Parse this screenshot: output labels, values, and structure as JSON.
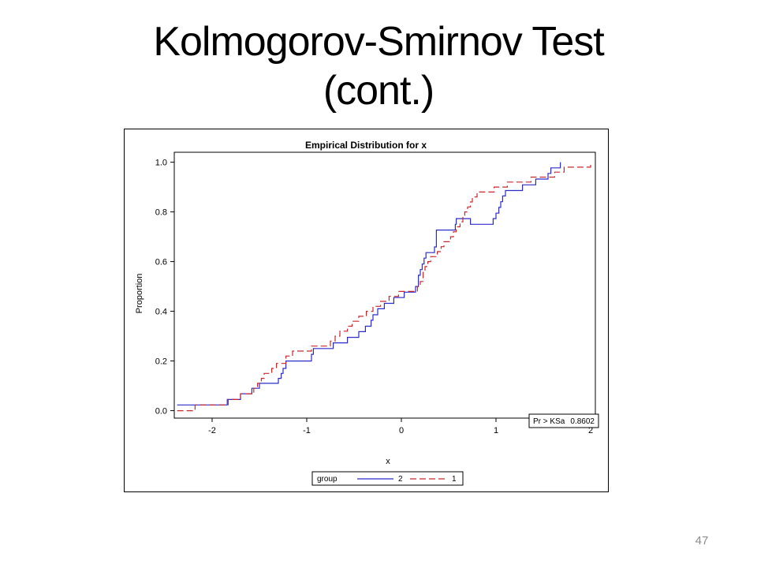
{
  "slide": {
    "title_line1": "Kolmogorov-Smirnov Test",
    "title_line2": "(cont.)",
    "page_number": "47"
  },
  "chart_data": {
    "type": "line",
    "step": true,
    "title": "Empirical Distribution for x",
    "xlabel": "x",
    "ylabel": "Proportion",
    "xlim": [
      -2.4,
      2.05
    ],
    "ylim": [
      -0.03,
      1.04
    ],
    "xticks": [
      -2,
      -1,
      0,
      1,
      2
    ],
    "yticks": [
      0.0,
      0.2,
      0.4,
      0.6,
      0.8,
      1.0
    ],
    "ytick_labels": [
      "0.0",
      "0.2",
      "0.4",
      "0.6",
      "0.8",
      "1.0"
    ],
    "grid": false,
    "legend": {
      "title": "group",
      "position": "bottom"
    },
    "annotation": {
      "label": "Pr > KSa",
      "value": "0.8602",
      "position": "bottom-right"
    },
    "series": [
      {
        "name": "2",
        "color": "#2b2bcc",
        "dash": "solid",
        "points": [
          [
            -2.37,
            0.023
          ],
          [
            -2.3,
            0.023
          ],
          [
            -1.85,
            0.023
          ],
          [
            -1.84,
            0.045
          ],
          [
            -1.72,
            0.045
          ],
          [
            -1.7,
            0.068
          ],
          [
            -1.6,
            0.068
          ],
          [
            -1.58,
            0.09
          ],
          [
            -1.52,
            0.09
          ],
          [
            -1.5,
            0.11
          ],
          [
            -1.35,
            0.11
          ],
          [
            -1.3,
            0.13
          ],
          [
            -1.27,
            0.15
          ],
          [
            -1.25,
            0.17
          ],
          [
            -1.22,
            0.2
          ],
          [
            -1.0,
            0.2
          ],
          [
            -0.95,
            0.227
          ],
          [
            -0.93,
            0.25
          ],
          [
            -0.75,
            0.25
          ],
          [
            -0.72,
            0.273
          ],
          [
            -0.6,
            0.273
          ],
          [
            -0.57,
            0.295
          ],
          [
            -0.45,
            0.318
          ],
          [
            -0.38,
            0.34
          ],
          [
            -0.32,
            0.364
          ],
          [
            -0.3,
            0.386
          ],
          [
            -0.27,
            0.386
          ],
          [
            -0.25,
            0.41
          ],
          [
            -0.2,
            0.41
          ],
          [
            -0.18,
            0.432
          ],
          [
            -0.1,
            0.432
          ],
          [
            -0.08,
            0.455
          ],
          [
            0.0,
            0.455
          ],
          [
            0.03,
            0.477
          ],
          [
            0.1,
            0.477
          ],
          [
            0.15,
            0.5
          ],
          [
            0.18,
            0.545
          ],
          [
            0.2,
            0.568
          ],
          [
            0.22,
            0.59
          ],
          [
            0.24,
            0.614
          ],
          [
            0.26,
            0.636
          ],
          [
            0.32,
            0.636
          ],
          [
            0.35,
            0.659
          ],
          [
            0.37,
            0.727
          ],
          [
            0.55,
            0.727
          ],
          [
            0.57,
            0.75
          ],
          [
            0.58,
            0.773
          ],
          [
            0.72,
            0.773
          ],
          [
            0.73,
            0.75
          ],
          [
            0.94,
            0.75
          ],
          [
            0.97,
            0.773
          ],
          [
            1.0,
            0.795
          ],
          [
            1.03,
            0.818
          ],
          [
            1.05,
            0.841
          ],
          [
            1.07,
            0.864
          ],
          [
            1.1,
            0.886
          ],
          [
            1.25,
            0.886
          ],
          [
            1.28,
            0.909
          ],
          [
            1.4,
            0.909
          ],
          [
            1.42,
            0.932
          ],
          [
            1.52,
            0.932
          ],
          [
            1.55,
            0.955
          ],
          [
            1.58,
            0.977
          ],
          [
            1.67,
            0.977
          ],
          [
            1.68,
            1.0
          ]
        ]
      },
      {
        "name": "1",
        "color": "#c8292e",
        "dash": "dashed",
        "points": [
          [
            -2.37,
            0.0
          ],
          [
            -2.2,
            0.0
          ],
          [
            -2.18,
            0.023
          ],
          [
            -1.85,
            0.023
          ],
          [
            -1.83,
            0.045
          ],
          [
            -1.72,
            0.045
          ],
          [
            -1.7,
            0.068
          ],
          [
            -1.58,
            0.068
          ],
          [
            -1.56,
            0.09
          ],
          [
            -1.52,
            0.11
          ],
          [
            -1.48,
            0.13
          ],
          [
            -1.45,
            0.15
          ],
          [
            -1.4,
            0.15
          ],
          [
            -1.37,
            0.17
          ],
          [
            -1.32,
            0.19
          ],
          [
            -1.25,
            0.19
          ],
          [
            -1.22,
            0.22
          ],
          [
            -1.15,
            0.24
          ],
          [
            -0.98,
            0.24
          ],
          [
            -0.95,
            0.26
          ],
          [
            -0.8,
            0.26
          ],
          [
            -0.75,
            0.28
          ],
          [
            -0.7,
            0.3
          ],
          [
            -0.65,
            0.32
          ],
          [
            -0.6,
            0.32
          ],
          [
            -0.57,
            0.34
          ],
          [
            -0.52,
            0.36
          ],
          [
            -0.45,
            0.38
          ],
          [
            -0.4,
            0.38
          ],
          [
            -0.37,
            0.4
          ],
          [
            -0.3,
            0.42
          ],
          [
            -0.25,
            0.42
          ],
          [
            -0.22,
            0.44
          ],
          [
            -0.15,
            0.44
          ],
          [
            -0.13,
            0.46
          ],
          [
            -0.05,
            0.46
          ],
          [
            -0.03,
            0.48
          ],
          [
            0.15,
            0.48
          ],
          [
            0.17,
            0.5
          ],
          [
            0.2,
            0.52
          ],
          [
            0.23,
            0.56
          ],
          [
            0.25,
            0.58
          ],
          [
            0.28,
            0.6
          ],
          [
            0.31,
            0.62
          ],
          [
            0.35,
            0.62
          ],
          [
            0.38,
            0.64
          ],
          [
            0.42,
            0.66
          ],
          [
            0.45,
            0.68
          ],
          [
            0.5,
            0.68
          ],
          [
            0.52,
            0.7
          ],
          [
            0.55,
            0.72
          ],
          [
            0.58,
            0.74
          ],
          [
            0.62,
            0.76
          ],
          [
            0.65,
            0.78
          ],
          [
            0.67,
            0.8
          ],
          [
            0.7,
            0.82
          ],
          [
            0.73,
            0.84
          ],
          [
            0.75,
            0.86
          ],
          [
            0.8,
            0.88
          ],
          [
            0.95,
            0.88
          ],
          [
            0.98,
            0.9
          ],
          [
            1.1,
            0.9
          ],
          [
            1.12,
            0.92
          ],
          [
            1.35,
            0.92
          ],
          [
            1.37,
            0.94
          ],
          [
            1.6,
            0.94
          ],
          [
            1.62,
            0.96
          ],
          [
            1.7,
            0.96
          ],
          [
            1.72,
            0.98
          ],
          [
            1.98,
            0.98
          ],
          [
            2.0,
            1.0
          ]
        ]
      }
    ]
  }
}
